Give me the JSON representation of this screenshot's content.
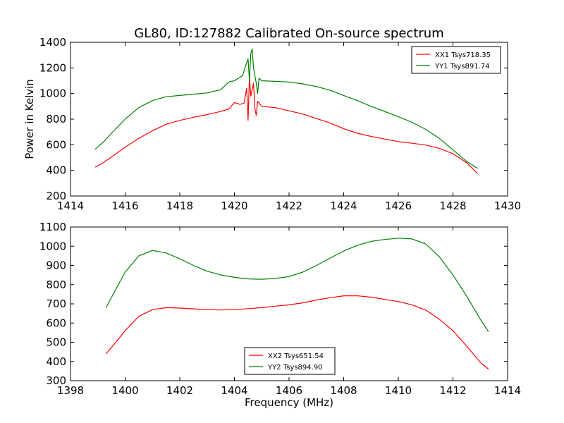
{
  "chart_data": [
    {
      "type": "line",
      "title": "GL80, ID:127882 Calibrated On-source spectrum",
      "xlabel": "",
      "ylabel": "Power in Kelvin",
      "xlim": [
        1414,
        1430
      ],
      "ylim": [
        200,
        1400
      ],
      "xticks": [
        "1414",
        "1416",
        "1418",
        "1420",
        "1422",
        "1424",
        "1426",
        "1428",
        "1430"
      ],
      "yticks": [
        "200",
        "400",
        "600",
        "800",
        "1000",
        "1200",
        "1400"
      ],
      "grid": false,
      "legend_position": "top-right",
      "series": [
        {
          "name": "XX1 Tsys718.35",
          "color": "#ff0000",
          "points": [
            [
              1414.9,
              425
            ],
            [
              1415.2,
              460
            ],
            [
              1415.5,
              505
            ],
            [
              1416.0,
              580
            ],
            [
              1416.5,
              650
            ],
            [
              1417.0,
              710
            ],
            [
              1417.5,
              760
            ],
            [
              1418.0,
              790
            ],
            [
              1418.5,
              815
            ],
            [
              1419.0,
              835
            ],
            [
              1419.5,
              860
            ],
            [
              1419.8,
              880
            ],
            [
              1420.0,
              930
            ],
            [
              1420.2,
              915
            ],
            [
              1420.35,
              925
            ],
            [
              1420.45,
              1040
            ],
            [
              1420.5,
              790
            ],
            [
              1420.55,
              1130
            ],
            [
              1420.6,
              980
            ],
            [
              1420.7,
              1080
            ],
            [
              1420.75,
              880
            ],
            [
              1420.8,
              830
            ],
            [
              1420.85,
              940
            ],
            [
              1421.0,
              900
            ],
            [
              1421.5,
              890
            ],
            [
              1422.0,
              865
            ],
            [
              1422.5,
              840
            ],
            [
              1423.0,
              805
            ],
            [
              1423.5,
              770
            ],
            [
              1424.0,
              725
            ],
            [
              1424.5,
              690
            ],
            [
              1425.0,
              665
            ],
            [
              1425.5,
              645
            ],
            [
              1426.0,
              625
            ],
            [
              1426.5,
              612
            ],
            [
              1427.0,
              598
            ],
            [
              1427.5,
              572
            ],
            [
              1428.0,
              530
            ],
            [
              1428.5,
              460
            ],
            [
              1428.9,
              375
            ]
          ]
        },
        {
          "name": "YY1 Tsys891.74",
          "color": "#008000",
          "points": [
            [
              1414.9,
              565
            ],
            [
              1415.2,
              620
            ],
            [
              1415.5,
              690
            ],
            [
              1416.0,
              800
            ],
            [
              1416.5,
              890
            ],
            [
              1417.0,
              945
            ],
            [
              1417.5,
              975
            ],
            [
              1418.0,
              985
            ],
            [
              1418.5,
              995
            ],
            [
              1419.0,
              1005
            ],
            [
              1419.5,
              1030
            ],
            [
              1419.8,
              1090
            ],
            [
              1420.0,
              1100
            ],
            [
              1420.3,
              1140
            ],
            [
              1420.4,
              1210
            ],
            [
              1420.5,
              1270
            ],
            [
              1420.55,
              1100
            ],
            [
              1420.6,
              1310
            ],
            [
              1420.65,
              1350
            ],
            [
              1420.7,
              1200
            ],
            [
              1420.8,
              1080
            ],
            [
              1420.85,
              1000
            ],
            [
              1420.9,
              1120
            ],
            [
              1421.0,
              1100
            ],
            [
              1421.5,
              1095
            ],
            [
              1422.0,
              1090
            ],
            [
              1422.5,
              1075
            ],
            [
              1423.0,
              1055
            ],
            [
              1423.5,
              1025
            ],
            [
              1424.0,
              985
            ],
            [
              1424.5,
              945
            ],
            [
              1425.0,
              900
            ],
            [
              1425.5,
              860
            ],
            [
              1426.0,
              820
            ],
            [
              1426.5,
              775
            ],
            [
              1427.0,
              720
            ],
            [
              1427.5,
              650
            ],
            [
              1428.0,
              560
            ],
            [
              1428.5,
              470
            ],
            [
              1428.9,
              415
            ]
          ]
        }
      ]
    },
    {
      "type": "line",
      "title": "",
      "xlabel": "Frequency (MHz)",
      "ylabel": "",
      "xlim": [
        1398,
        1414
      ],
      "ylim": [
        300,
        1100
      ],
      "xticks": [
        "1398",
        "1400",
        "1402",
        "1404",
        "1406",
        "1408",
        "1410",
        "1412",
        "1414"
      ],
      "yticks": [
        "300",
        "400",
        "500",
        "600",
        "700",
        "800",
        "900",
        "1000",
        "1100"
      ],
      "grid": false,
      "legend_position": "bottom-center",
      "series": [
        {
          "name": "XX2 Tsys651.54",
          "color": "#ff0000",
          "points": [
            [
              1399.3,
              440
            ],
            [
              1399.6,
              490
            ],
            [
              1400.0,
              560
            ],
            [
              1400.5,
              635
            ],
            [
              1401.0,
              670
            ],
            [
              1401.5,
              680
            ],
            [
              1402.0,
              678
            ],
            [
              1402.5,
              674
            ],
            [
              1403.0,
              670
            ],
            [
              1403.5,
              668
            ],
            [
              1404.0,
              670
            ],
            [
              1404.5,
              675
            ],
            [
              1405.0,
              680
            ],
            [
              1405.5,
              688
            ],
            [
              1406.0,
              695
            ],
            [
              1406.5,
              705
            ],
            [
              1407.0,
              720
            ],
            [
              1407.5,
              732
            ],
            [
              1408.0,
              742
            ],
            [
              1408.5,
              742
            ],
            [
              1409.0,
              735
            ],
            [
              1409.5,
              723
            ],
            [
              1410.0,
              712
            ],
            [
              1410.5,
              695
            ],
            [
              1411.0,
              668
            ],
            [
              1411.5,
              620
            ],
            [
              1412.0,
              560
            ],
            [
              1412.5,
              480
            ],
            [
              1413.0,
              395
            ],
            [
              1413.3,
              360
            ]
          ]
        },
        {
          "name": "YY2 Tsys894.90",
          "color": "#008000",
          "points": [
            [
              1399.3,
              680
            ],
            [
              1399.6,
              760
            ],
            [
              1400.0,
              865
            ],
            [
              1400.5,
              950
            ],
            [
              1401.0,
              978
            ],
            [
              1401.5,
              965
            ],
            [
              1402.0,
              935
            ],
            [
              1402.5,
              900
            ],
            [
              1403.0,
              870
            ],
            [
              1403.5,
              850
            ],
            [
              1404.0,
              838
            ],
            [
              1404.5,
              830
            ],
            [
              1405.0,
              828
            ],
            [
              1405.5,
              832
            ],
            [
              1406.0,
              842
            ],
            [
              1406.5,
              865
            ],
            [
              1407.0,
              900
            ],
            [
              1407.5,
              938
            ],
            [
              1408.0,
              975
            ],
            [
              1408.5,
              1005
            ],
            [
              1409.0,
              1025
            ],
            [
              1409.5,
              1035
            ],
            [
              1410.0,
              1042
            ],
            [
              1410.5,
              1038
            ],
            [
              1411.0,
              1012
            ],
            [
              1411.5,
              945
            ],
            [
              1412.0,
              850
            ],
            [
              1412.5,
              740
            ],
            [
              1413.0,
              620
            ],
            [
              1413.3,
              555
            ]
          ]
        }
      ]
    }
  ]
}
